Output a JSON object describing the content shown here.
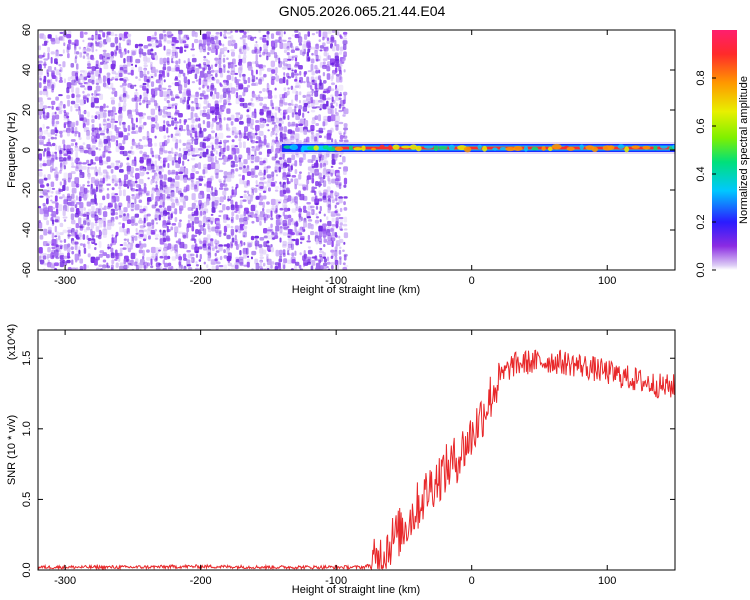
{
  "title": "GN05.2026.065.21.44.E04",
  "colors": {
    "snr_line": "#e8282a",
    "scatter_purple": "#7b2ee6",
    "background": "#ffffff"
  },
  "chart_data": [
    {
      "type": "heatmap",
      "xlabel": "Height of straight line (km)",
      "ylabel": "Frequency (Hz)",
      "xlim": [
        -320,
        150
      ],
      "ylim": [
        -60,
        60
      ],
      "x_ticks": [
        "-300",
        "-200",
        "-100",
        "0",
        "100"
      ],
      "x_tick_values": [
        -300,
        -200,
        -100,
        0,
        100
      ],
      "y_ticks": [
        "-60",
        "-40",
        "-20",
        "0",
        "20",
        "40",
        "60"
      ],
      "y_tick_values": [
        -60,
        -40,
        -20,
        0,
        20,
        40,
        60
      ],
      "colorbar": {
        "label": "Normalized spectral amplitude",
        "range": [
          0,
          1
        ],
        "ticks": [
          "0.0",
          "0.2",
          "0.4",
          "0.6",
          "0.8"
        ],
        "tick_values": [
          0.0,
          0.2,
          0.4,
          0.6,
          0.8
        ],
        "colormap": "rainbow"
      },
      "regions": {
        "broadband_noise": {
          "x_range": [
            -320,
            -93
          ],
          "freq_range": [
            -60,
            60
          ],
          "amplitude": "low (0.1-0.3)"
        },
        "narrowband_signal": {
          "x_range": [
            -140,
            150
          ],
          "center_freq_hz": 1,
          "amplitude_peak": 1.0
        }
      },
      "grid": false
    },
    {
      "type": "line",
      "xlabel": "Height of straight line (km)",
      "ylabel": "SNR (10 * v/v)",
      "y_multiplier": "(x10^4)",
      "xlim": [
        -320,
        150
      ],
      "ylim": [
        0,
        1.7
      ],
      "x_ticks": [
        "-300",
        "-200",
        "-100",
        "0",
        "100"
      ],
      "x_tick_values": [
        -300,
        -200,
        -100,
        0,
        100
      ],
      "y_ticks": [
        "0.0",
        "0.5",
        "1.0",
        "1.5"
      ],
      "y_tick_values": [
        0.0,
        0.5,
        1.0,
        1.5
      ],
      "series": [
        {
          "x": [
            -320,
            -250,
            -200,
            -150,
            -100,
            -80,
            -70,
            -60,
            -50,
            -40,
            -30,
            -20,
            -10,
            0,
            10,
            20,
            30,
            40,
            60,
            80,
            100,
            120,
            140,
            150
          ],
          "y": [
            0.02,
            0.02,
            0.025,
            0.02,
            0.02,
            0.02,
            0.05,
            0.2,
            0.3,
            0.45,
            0.6,
            0.7,
            0.8,
            0.95,
            1.15,
            1.35,
            1.45,
            1.47,
            1.48,
            1.45,
            1.4,
            1.35,
            1.3,
            1.3
          ]
        }
      ],
      "grid": false
    }
  ]
}
